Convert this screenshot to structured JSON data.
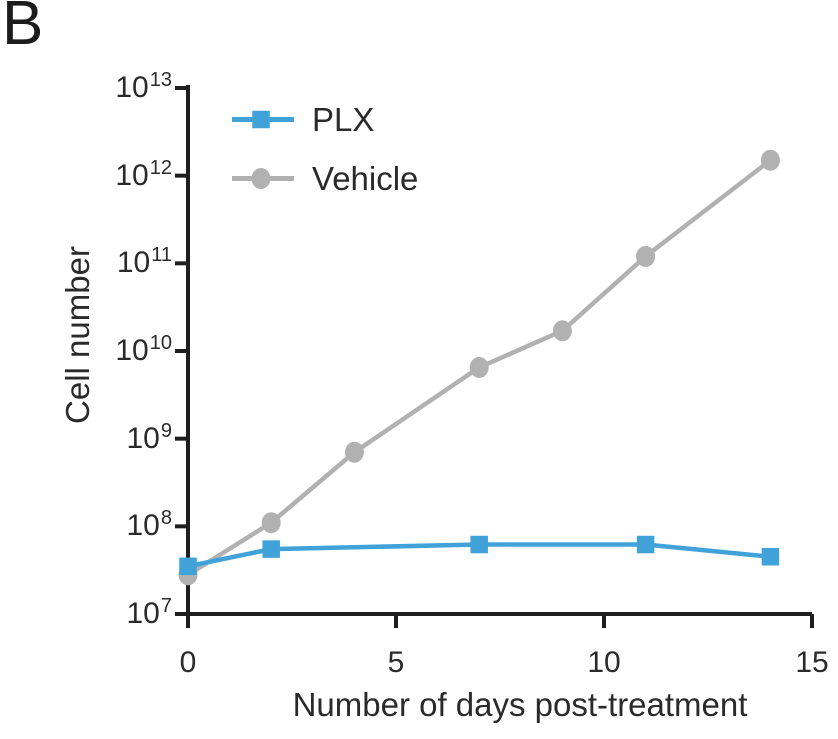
{
  "panel_label": "B",
  "colors": {
    "plx": "#40a2d8",
    "vehicle": "#b1b1b1",
    "axis": "#1f1f1f",
    "text": "#2a2a2a",
    "background": "#ffffff"
  },
  "chart_data": {
    "type": "line",
    "title": "",
    "xlabel": "Number of days post-treatment",
    "ylabel": "Cell number",
    "x_ticks": [
      0,
      5,
      10,
      15
    ],
    "xlim": [
      0,
      15
    ],
    "y_scale": "log10",
    "y_tick_exponents": [
      7,
      8,
      9,
      10,
      11,
      12,
      13
    ],
    "ylim": [
      10000000.0,
      10000000000000.0
    ],
    "grid": false,
    "legend_position": "top-left-inside",
    "series": [
      {
        "name": "PLX",
        "marker": "square",
        "color": "#40a2d8",
        "x": [
          0,
          2,
          7,
          11,
          14
        ],
        "y": [
          35000000.0,
          55000000.0,
          62000000.0,
          62000000.0,
          45000000.0
        ]
      },
      {
        "name": "Vehicle",
        "marker": "circle",
        "color": "#b1b1b1",
        "x": [
          0,
          2,
          4,
          7,
          9,
          11,
          14
        ],
        "y": [
          28000000.0,
          110000000.0,
          700000000.0,
          6500000000.0,
          17000000000.0,
          120000000000.0,
          1500000000000.0
        ]
      }
    ]
  }
}
